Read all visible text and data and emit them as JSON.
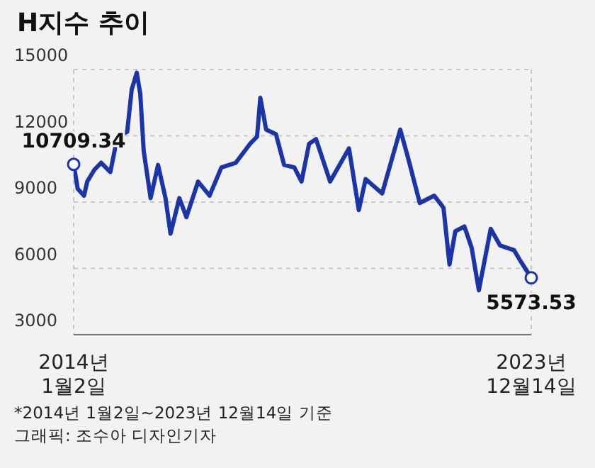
{
  "chart_data": {
    "type": "line",
    "title": "H지수 추이",
    "x": [
      "2014-01-02",
      "2014-02-03",
      "2014-03-25",
      "2014-04-20",
      "2014-06-15",
      "2014-08-08",
      "2014-10-20",
      "2014-12-16",
      "2015-03-03",
      "2015-04-08",
      "2015-05-18",
      "2015-06-15",
      "2015-07-12",
      "2015-09-05",
      "2015-11-03",
      "2016-01-01",
      "2016-02-10",
      "2016-04-20",
      "2016-06-15",
      "2016-09-16",
      "2016-12-16",
      "2017-03-20",
      "2017-07-12",
      "2017-11-03",
      "2017-12-28",
      "2018-01-23",
      "2018-03-10",
      "2018-05-27",
      "2018-07-31",
      "2018-10-20",
      "2018-12-16",
      "2019-02-14",
      "2019-04-10",
      "2019-07-31",
      "2019-12-28",
      "2020-03-15",
      "2020-05-08",
      "2020-09-16",
      "2021-02-07",
      "2021-04-10",
      "2021-07-12",
      "2021-11-03",
      "2022-01-16",
      "2022-03-05",
      "2022-04-20",
      "2022-07-01",
      "2022-08-28",
      "2022-10-24",
      "2023-01-26",
      "2023-04-10",
      "2023-07-31",
      "2023-09-24",
      "2023-12-14"
    ],
    "series": [
      {
        "color": "#1a35a8",
        "values": [
          10709.34,
          9600,
          9290,
          9930,
          10460,
          10780,
          10360,
          11960,
          12180,
          14100,
          14850,
          13890,
          11320,
          9180,
          10680,
          9180,
          7570,
          9180,
          8320,
          9930,
          9290,
          10570,
          10780,
          11640,
          11960,
          13720,
          12280,
          12070,
          10680,
          10570,
          9930,
          11640,
          11850,
          9930,
          11430,
          8640,
          10040,
          9390,
          12280,
          11000,
          8960,
          9290,
          8750,
          6180,
          7680,
          7900,
          6930,
          5010,
          7790,
          7040,
          6820,
          6290,
          5573.53
        ]
      }
    ],
    "xlim": [
      "2014-01-02",
      "2023-12-14"
    ],
    "xticks": [
      {
        "value": "2014-01-02",
        "label": "2014년 1월2일"
      },
      {
        "value": "2023-12-14",
        "label": "2023년 12월14일"
      }
    ],
    "ylim": [
      3000,
      15000
    ],
    "yticks": [
      3000,
      6000,
      9000,
      12000,
      15000
    ],
    "grid": true,
    "marker": "none",
    "line_style": "solid",
    "annotations": [
      {
        "text": "10709.34",
        "x": "2014-01-02",
        "y": 10709.34
      },
      {
        "text": "5573.53",
        "x": "2023-12-14",
        "y": 5573.53
      },
      "*2014년 1월2일~2023년 12월14일 기준",
      "그래픽: 조수아 디자인기자"
    ]
  }
}
